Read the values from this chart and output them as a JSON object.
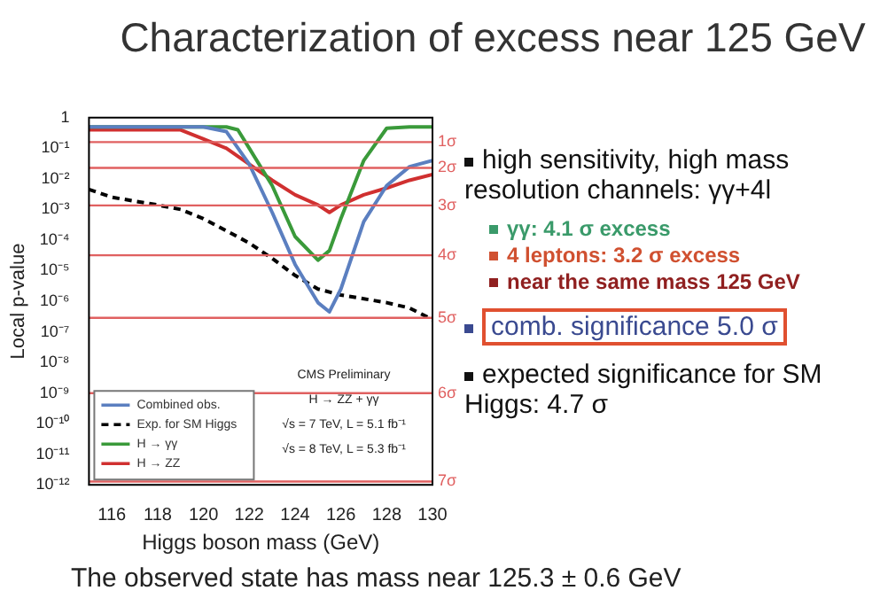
{
  "chart_data": {
    "type": "line",
    "title": "Characterization of excess near 125 GeV",
    "xlabel": "Higgs boson mass (GeV)",
    "ylabel": "Local p-value",
    "log": "y",
    "legend": "bottom left",
    "marker": "none",
    "xlim": [
      115,
      130
    ],
    "xticks": [
      116,
      118,
      120,
      122,
      124,
      126,
      128,
      130
    ],
    "ylim": [
      1e-12,
      1
    ],
    "yticks": [
      1,
      {
        "value": 0.1,
        "label": "10⁻¹"
      },
      {
        "value": 0.01,
        "label": "10⁻²"
      },
      {
        "value": 0.001,
        "label": "10⁻³"
      },
      {
        "value": 0.0001,
        "label": "10⁻⁴"
      },
      {
        "value": 1e-05,
        "label": "10⁻⁵"
      },
      {
        "value": 1e-06,
        "label": "10⁻⁶"
      },
      {
        "value": 1e-07,
        "label": "10⁻⁷"
      },
      {
        "value": 1e-08,
        "label": "10⁻⁸"
      },
      {
        "value": 1e-09,
        "label": "10⁻⁹"
      },
      {
        "value": 1e-10,
        "label": "10⁻¹⁰"
      },
      {
        "value": 1e-11,
        "label": "10⁻¹¹"
      },
      {
        "value": 1e-12,
        "label": "10⁻¹²"
      }
    ],
    "series": [
      {
        "name": "Combined obs.",
        "color": "#5b7fc0",
        "x": [
          115,
          116,
          118,
          120,
          121,
          122,
          123,
          124,
          125,
          125.5,
          126,
          127,
          128,
          129,
          130
        ],
        "values": [
          0.5,
          0.5,
          0.5,
          0.5,
          0.35,
          0.03,
          0.0008,
          1.6e-05,
          9e-07,
          4.5e-07,
          2.5e-06,
          0.0004,
          0.006,
          0.025,
          0.04
        ]
      },
      {
        "name": "Exp. for SM Higgs",
        "color": "#000000",
        "line_style": "dashed",
        "x": [
          115,
          116,
          118,
          119,
          120,
          122,
          123,
          124,
          125,
          126,
          128,
          129,
          130
        ],
        "values": [
          0.0045,
          0.0025,
          0.0014,
          0.001,
          0.0005,
          8e-05,
          2.5e-05,
          7e-06,
          2.5e-06,
          1.6e-06,
          9e-07,
          6e-07,
          2.5e-07
        ]
      },
      {
        "name": "H → γγ",
        "color": "#3a9a3a",
        "x": [
          115,
          118,
          121,
          121.5,
          122,
          123,
          124,
          125,
          125.5,
          126,
          127,
          128,
          129,
          130
        ],
        "values": [
          0.5,
          0.5,
          0.5,
          0.4,
          0.1,
          0.006,
          0.00013,
          2.2e-05,
          4.5e-05,
          0.0005,
          0.04,
          0.45,
          0.5,
          0.5
        ]
      },
      {
        "name": "H → ZZ",
        "color": "#d03030",
        "x": [
          115,
          117,
          119,
          120,
          121,
          122,
          123,
          124,
          125,
          125.5,
          126,
          127,
          128,
          129,
          130
        ],
        "values": [
          0.4,
          0.4,
          0.4,
          0.2,
          0.1,
          0.03,
          0.009,
          0.003,
          0.0014,
          0.0008,
          0.0014,
          0.003,
          0.005,
          0.009,
          0.014
        ]
      }
    ],
    "ref_lines": [
      {
        "axis": "y",
        "value": 0.159,
        "label": "1σ",
        "color": "#e06060"
      },
      {
        "axis": "y",
        "value": 0.0228,
        "label": "2σ",
        "color": "#e06060"
      },
      {
        "axis": "y",
        "value": 0.00135,
        "label": "3σ",
        "color": "#e06060"
      },
      {
        "axis": "y",
        "value": 3.17e-05,
        "label": "4σ",
        "color": "#e06060"
      },
      {
        "axis": "y",
        "value": 2.87e-07,
        "label": "5σ",
        "color": "#e06060"
      },
      {
        "axis": "y",
        "value": 9.87e-10,
        "label": "6σ",
        "color": "#e06060"
      },
      {
        "axis": "y",
        "value": 1.28e-12,
        "label": "7σ",
        "color": "#e06060"
      }
    ],
    "annotations": [
      "CMS Preliminary",
      "H → ZZ + γγ",
      "√s = 7 TeV, L = 5.1 fb⁻¹",
      "√s = 8 TeV, L = 5.3 fb⁻¹",
      "high sensitivity, high mass resolution channels: γγ+4l",
      "γγ: 4.1 σ excess",
      "4 leptons: 3.2 σ excess",
      "near the same mass 125 GeV",
      "comb. significance 5.0 σ",
      "expected significance for SM Higgs: 4.7 σ",
      "The observed state has mass near 125.3 ± 0.6 GeV"
    ]
  }
}
